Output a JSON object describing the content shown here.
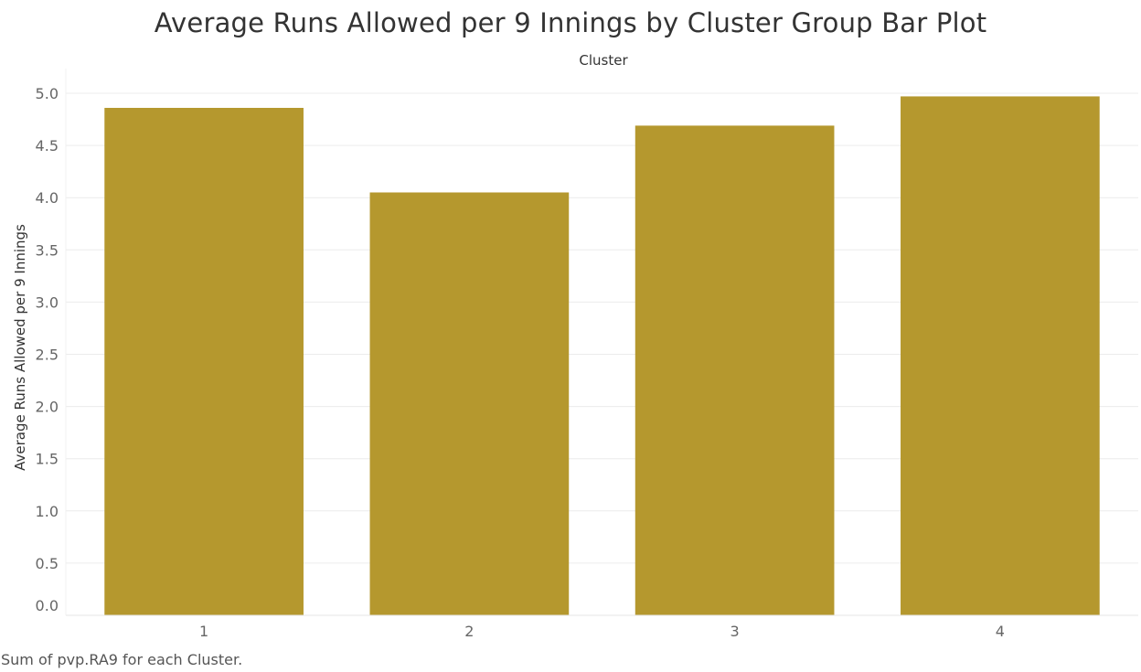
{
  "chart_data": {
    "type": "bar",
    "title": "Average Runs Allowed per 9 Innings by Cluster Group Bar Plot",
    "column_header": "Cluster",
    "ylabel": "Average Runs Allowed per 9 Innings",
    "categories": [
      "1",
      "2",
      "3",
      "4"
    ],
    "values": [
      4.86,
      4.05,
      4.69,
      4.97
    ],
    "ylim": [
      0,
      5.0
    ],
    "y_ticks": [
      "0.0",
      "0.5",
      "1.0",
      "1.5",
      "2.0",
      "2.5",
      "3.0",
      "3.5",
      "4.0",
      "4.5",
      "5.0"
    ],
    "grid": true,
    "bar_color": "#b5982e",
    "footnote": "Sum of pvp.RA9 for each Cluster."
  }
}
